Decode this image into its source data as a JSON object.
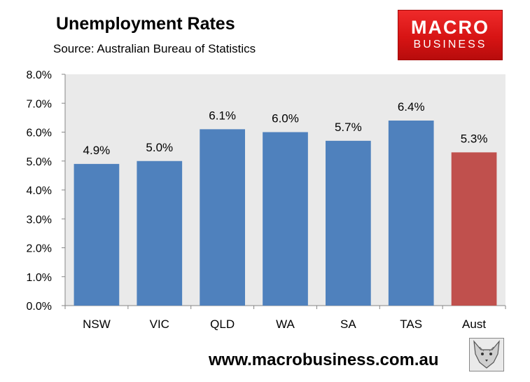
{
  "header": {
    "title": "Unemployment Rates",
    "subtitle": "Source: Australian Bureau of Statistics"
  },
  "logo": {
    "line1": "MACRO",
    "line2": "BUSINESS"
  },
  "footer": {
    "url": "www.macrobusiness.com.au"
  },
  "icons": {
    "corner_image": "wolf-icon"
  },
  "chart_data": {
    "type": "bar",
    "categories": [
      "NSW",
      "VIC",
      "QLD",
      "WA",
      "SA",
      "TAS",
      "Aust"
    ],
    "values": [
      4.9,
      5.0,
      6.1,
      6.0,
      5.7,
      6.4,
      5.3
    ],
    "data_labels": [
      "4.9%",
      "5.0%",
      "6.1%",
      "6.0%",
      "5.7%",
      "6.4%",
      "5.3%"
    ],
    "ylim": [
      0,
      8
    ],
    "yticks": [
      "0.0%",
      "1.0%",
      "2.0%",
      "3.0%",
      "4.0%",
      "5.0%",
      "6.0%",
      "7.0%",
      "8.0%"
    ],
    "grid": false,
    "legend": "none",
    "colors": {
      "default_bar": "#4f81bd",
      "highlight_bar": "#c0504d",
      "plot_background": "#eaeaea"
    },
    "highlight_category": "Aust"
  }
}
